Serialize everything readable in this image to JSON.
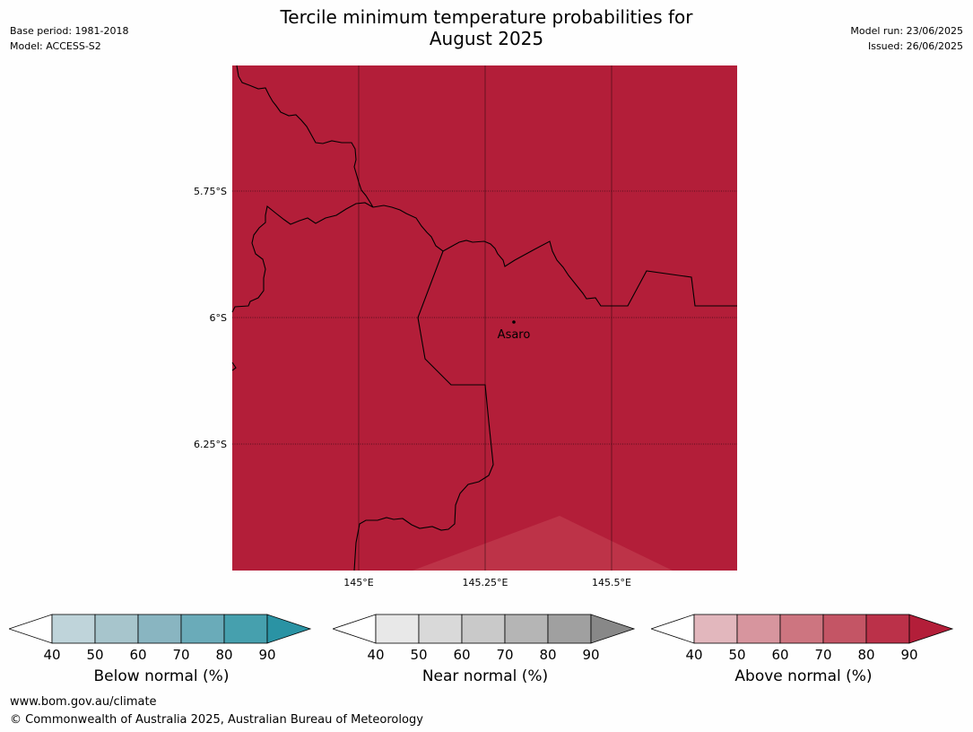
{
  "title": {
    "line1": "Tercile minimum temperature probabilities for",
    "line2": "August 2025"
  },
  "meta": {
    "base_period": "Base period: 1981-2018",
    "model": "Model: ACCESS-S2",
    "model_run": "Model run: 23/06/2025",
    "issued": "Issued: 26/06/2025"
  },
  "map": {
    "fill_color": "#b31e39",
    "lighter_region_color": "#bd3348",
    "lat_labels": [
      "5.75°S",
      "6°S",
      "6.25°S"
    ],
    "lon_labels": [
      "145°E",
      "145.25°E",
      "145.5°E"
    ],
    "town": {
      "name": "Asaro"
    }
  },
  "colorbars": [
    {
      "label": "Below normal (%)",
      "ticks": [
        "40",
        "50",
        "60",
        "70",
        "80",
        "90"
      ],
      "colors": [
        "#bfd4da",
        "#a7c5cc",
        "#89b5c1",
        "#6aabb9",
        "#46a0ae",
        "#2a93a4"
      ]
    },
    {
      "label": "Near normal (%)",
      "ticks": [
        "40",
        "50",
        "60",
        "70",
        "80",
        "90"
      ],
      "colors": [
        "#e8e8e8",
        "#d9d9d9",
        "#c9c9c9",
        "#b5b5b5",
        "#a0a0a0",
        "#888888"
      ]
    },
    {
      "label": "Above normal (%)",
      "ticks": [
        "40",
        "50",
        "60",
        "70",
        "80",
        "90"
      ],
      "colors": [
        "#e2b7bd",
        "#d7959e",
        "#cd7580",
        "#c45565",
        "#bb3149",
        "#b31e39"
      ]
    }
  ],
  "footer": {
    "url": "www.bom.gov.au/climate",
    "copyright": "© Commonwealth of Australia 2025, Australian Bureau of Meteorology"
  }
}
